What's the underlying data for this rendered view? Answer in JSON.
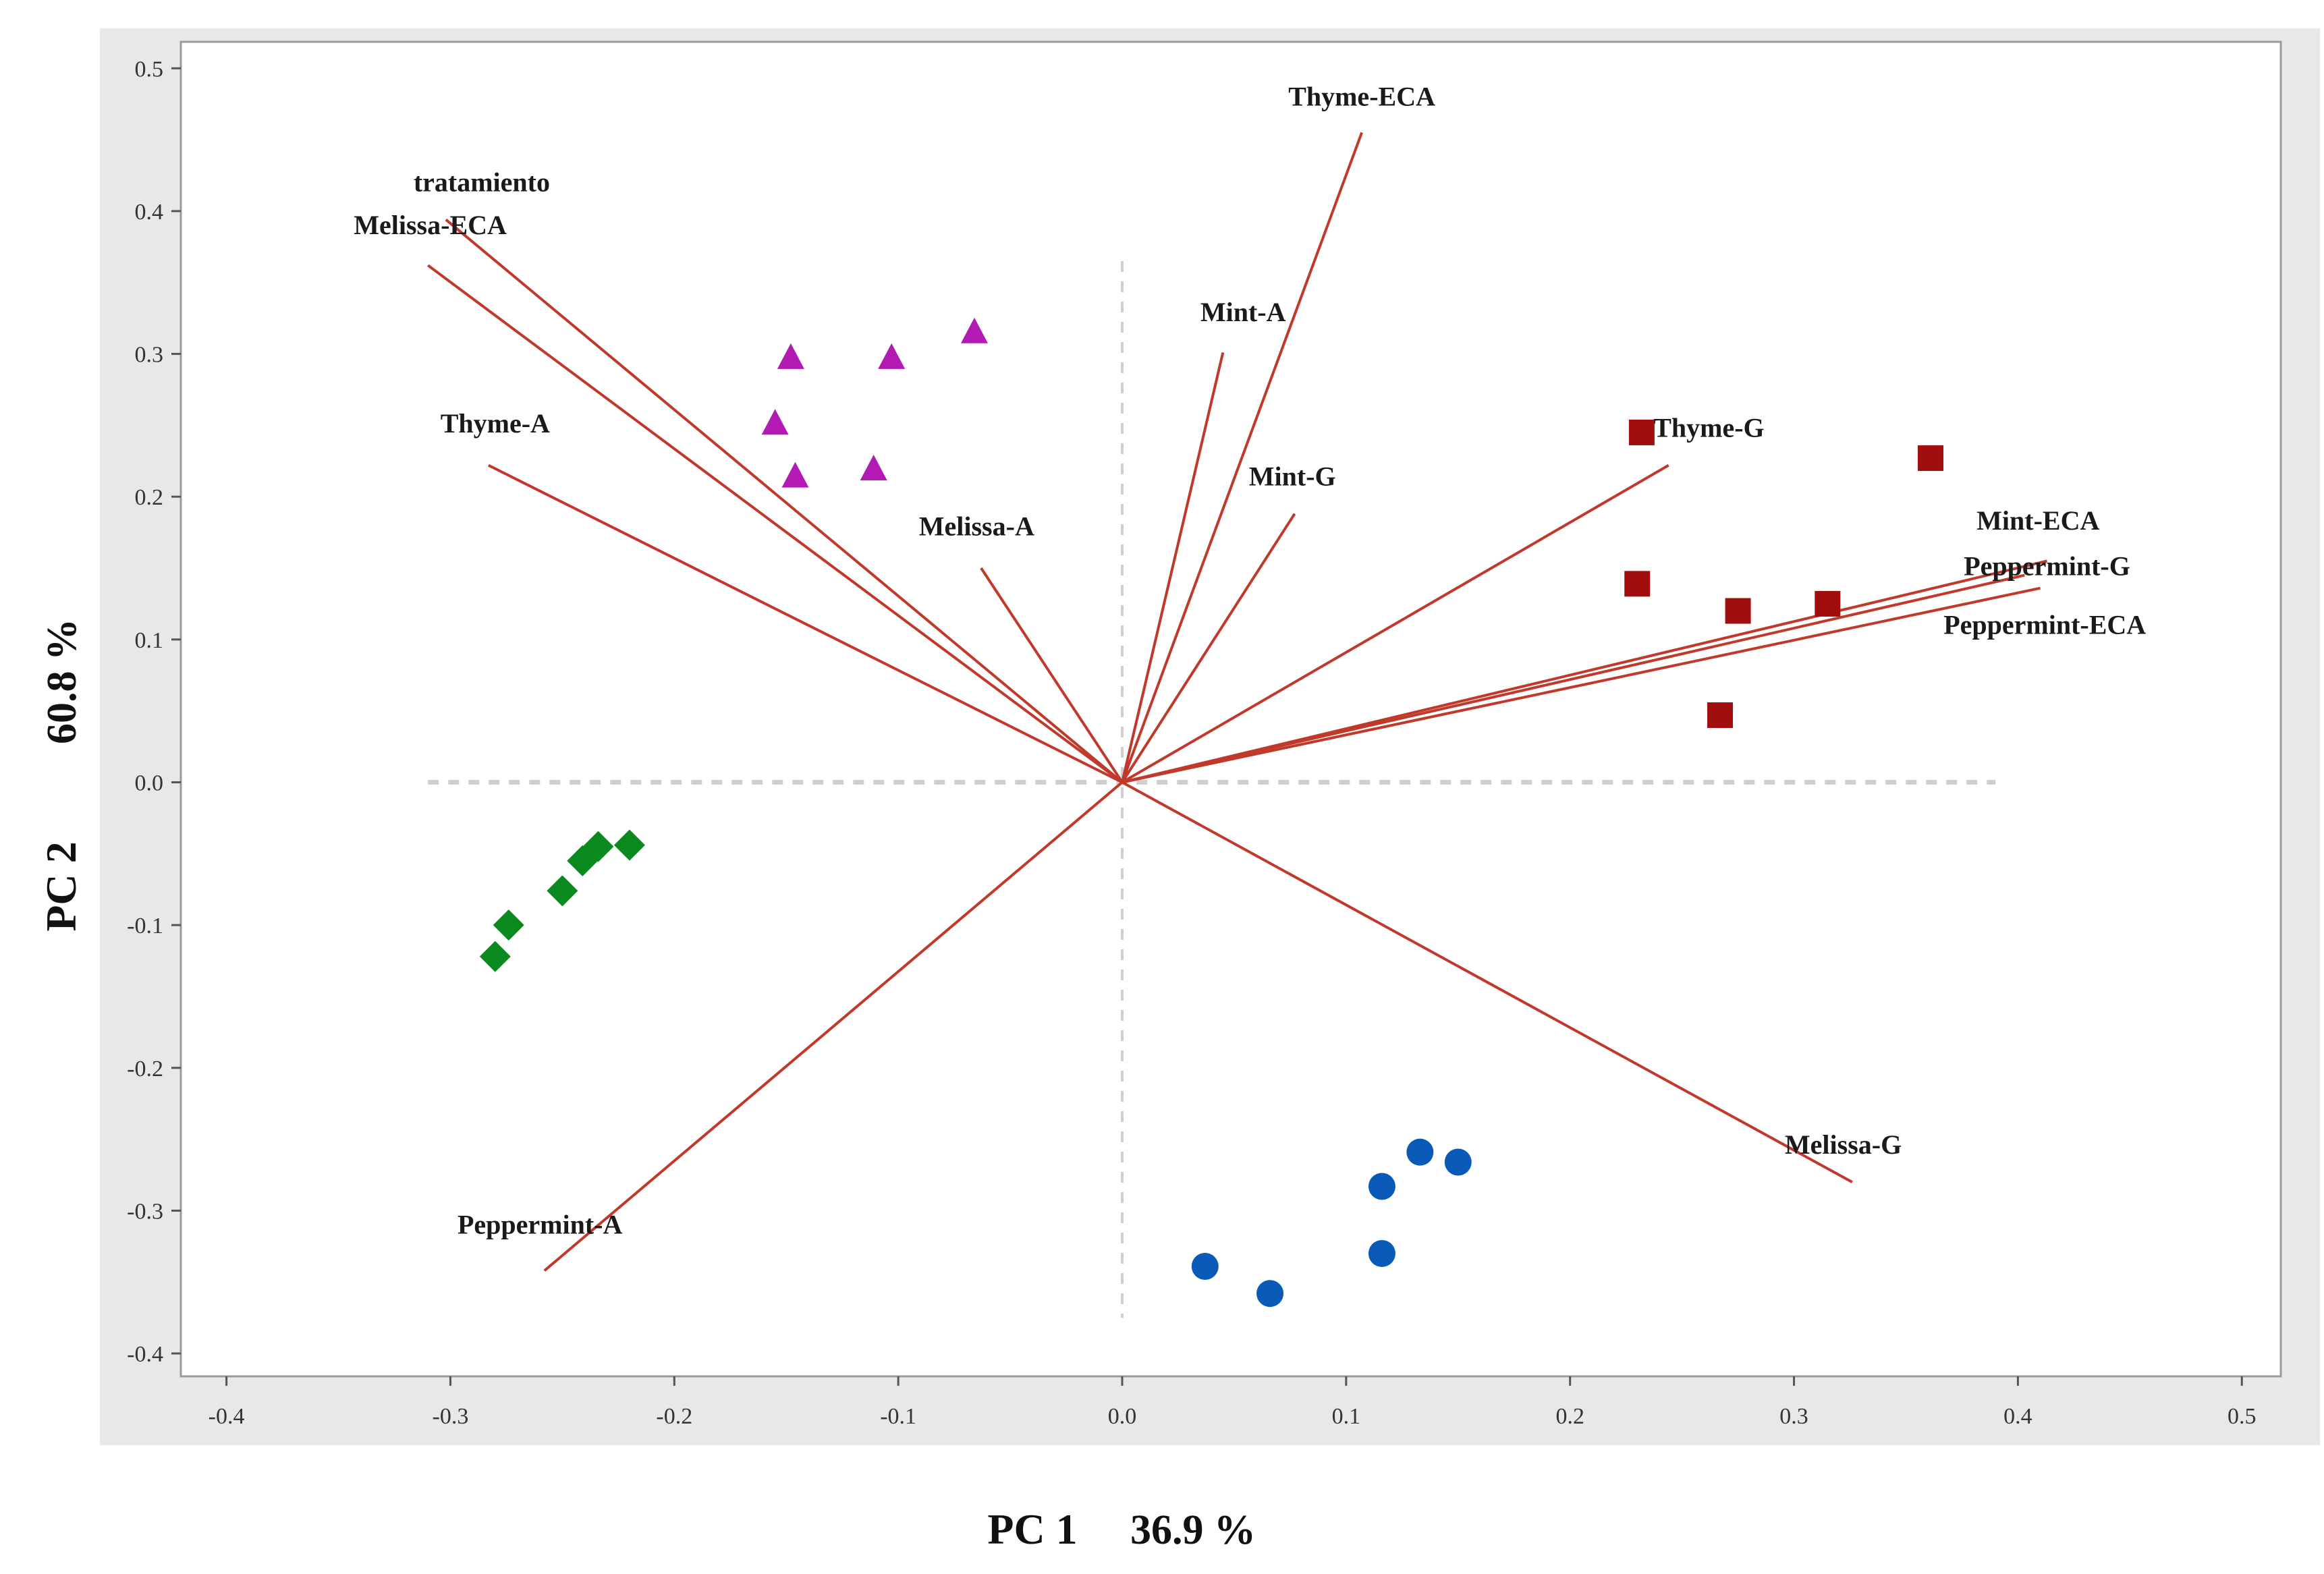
{
  "chart_data": {
    "type": "scatter",
    "subtype": "pca-biplot",
    "title": "",
    "xlabel": "PC 1",
    "xlabel_pct": "36.9 %",
    "ylabel": "PC 2",
    "ylabel_pct": "60.8 %",
    "xlim": [
      -0.42,
      0.51
    ],
    "ylim": [
      -0.415,
      0.505
    ],
    "x_ticks": [
      -0.4,
      -0.3,
      -0.2,
      -0.1,
      0.0,
      0.1,
      0.2,
      0.3,
      0.4,
      0.5
    ],
    "x_tick_labels": [
      "-0.4",
      "-0.3",
      "-0.2",
      "-0.1",
      "0.0",
      "0.1",
      "0.2",
      "0.3",
      "0.4",
      "0.5"
    ],
    "y_ticks": [
      0.5,
      0.4,
      0.3,
      0.2,
      0.1,
      0.0,
      -0.1,
      -0.2,
      -0.3,
      -0.4
    ],
    "y_tick_labels": [
      "0.5",
      "0.4",
      "0.3",
      "0.2",
      "0.1",
      "0.0",
      "-0.1",
      "-0.2",
      "-0.3",
      "-0.4"
    ],
    "grid": false,
    "colors": {
      "vector": "#c0392b",
      "frame_bg": "#e8e8e8",
      "plot_bg": "#ffffff",
      "reference_line": "#cfcfcf"
    },
    "series": [
      {
        "name": "group-triangle",
        "marker": "triangle",
        "color": "#b31ab3",
        "points": [
          [
            -0.148,
            0.297
          ],
          [
            -0.103,
            0.297
          ],
          [
            -0.066,
            0.315
          ],
          [
            -0.155,
            0.251
          ],
          [
            -0.146,
            0.214
          ],
          [
            -0.111,
            0.219
          ]
        ]
      },
      {
        "name": "group-square",
        "marker": "square",
        "color": "#a00e0e",
        "points": [
          [
            0.232,
            0.245
          ],
          [
            0.361,
            0.227
          ],
          [
            0.23,
            0.139
          ],
          [
            0.275,
            0.12
          ],
          [
            0.315,
            0.125
          ],
          [
            0.267,
            0.047
          ]
        ]
      },
      {
        "name": "group-diamond",
        "marker": "diamond",
        "color": "#0a8a1e",
        "points": [
          [
            -0.22,
            -0.044
          ],
          [
            -0.234,
            -0.045
          ],
          [
            -0.241,
            -0.055
          ],
          [
            -0.25,
            -0.076
          ],
          [
            -0.274,
            -0.1
          ],
          [
            -0.28,
            -0.122
          ]
        ]
      },
      {
        "name": "group-circle",
        "marker": "circle",
        "color": "#0a5bb8",
        "points": [
          [
            0.133,
            -0.259
          ],
          [
            0.15,
            -0.266
          ],
          [
            0.116,
            -0.283
          ],
          [
            0.037,
            -0.339
          ],
          [
            0.066,
            -0.358
          ],
          [
            0.116,
            -0.33
          ]
        ]
      }
    ],
    "vectors": [
      {
        "label": "tratamiento",
        "start": [
          0.0,
          0.0
        ],
        "end": [
          -0.302,
          0.394
        ]
      },
      {
        "label": "Melissa-ECA",
        "start": [
          0.0,
          0.0
        ],
        "end": [
          -0.31,
          0.362
        ]
      },
      {
        "label": "Thyme-A",
        "start": [
          0.0,
          0.0
        ],
        "end": [
          -0.283,
          0.222
        ]
      },
      {
        "label": "Melissa-A",
        "start": [
          0.0,
          0.0
        ],
        "end": [
          -0.063,
          0.15
        ]
      },
      {
        "label": "Thyme-ECA",
        "start": [
          0.0,
          0.0
        ],
        "end": [
          0.107,
          0.455
        ]
      },
      {
        "label": "Mint-A",
        "start": [
          0.0,
          0.0
        ],
        "end": [
          0.045,
          0.301
        ]
      },
      {
        "label": "Mint-G",
        "start": [
          0.0,
          0.0
        ],
        "end": [
          0.077,
          0.188
        ]
      },
      {
        "label": "Thyme-G",
        "start": [
          0.0,
          0.0
        ],
        "end": [
          0.244,
          0.222
        ]
      },
      {
        "label": "Mint-ECA",
        "start": [
          0.0,
          0.0
        ],
        "end": [
          0.413,
          0.155
        ]
      },
      {
        "label": "Peppermint-G",
        "start": [
          0.0,
          0.0
        ],
        "end": [
          0.403,
          0.145
        ]
      },
      {
        "label": "Peppermint-ECA",
        "start": [
          0.0,
          0.0
        ],
        "end": [
          0.41,
          0.136
        ]
      },
      {
        "label": "Melissa-G",
        "start": [
          0.0,
          0.0
        ],
        "end": [
          0.326,
          -0.28
        ]
      },
      {
        "label": "Peppermint-A",
        "start": [
          0.0,
          0.0
        ],
        "end": [
          -0.258,
          -0.342
        ]
      }
    ]
  }
}
